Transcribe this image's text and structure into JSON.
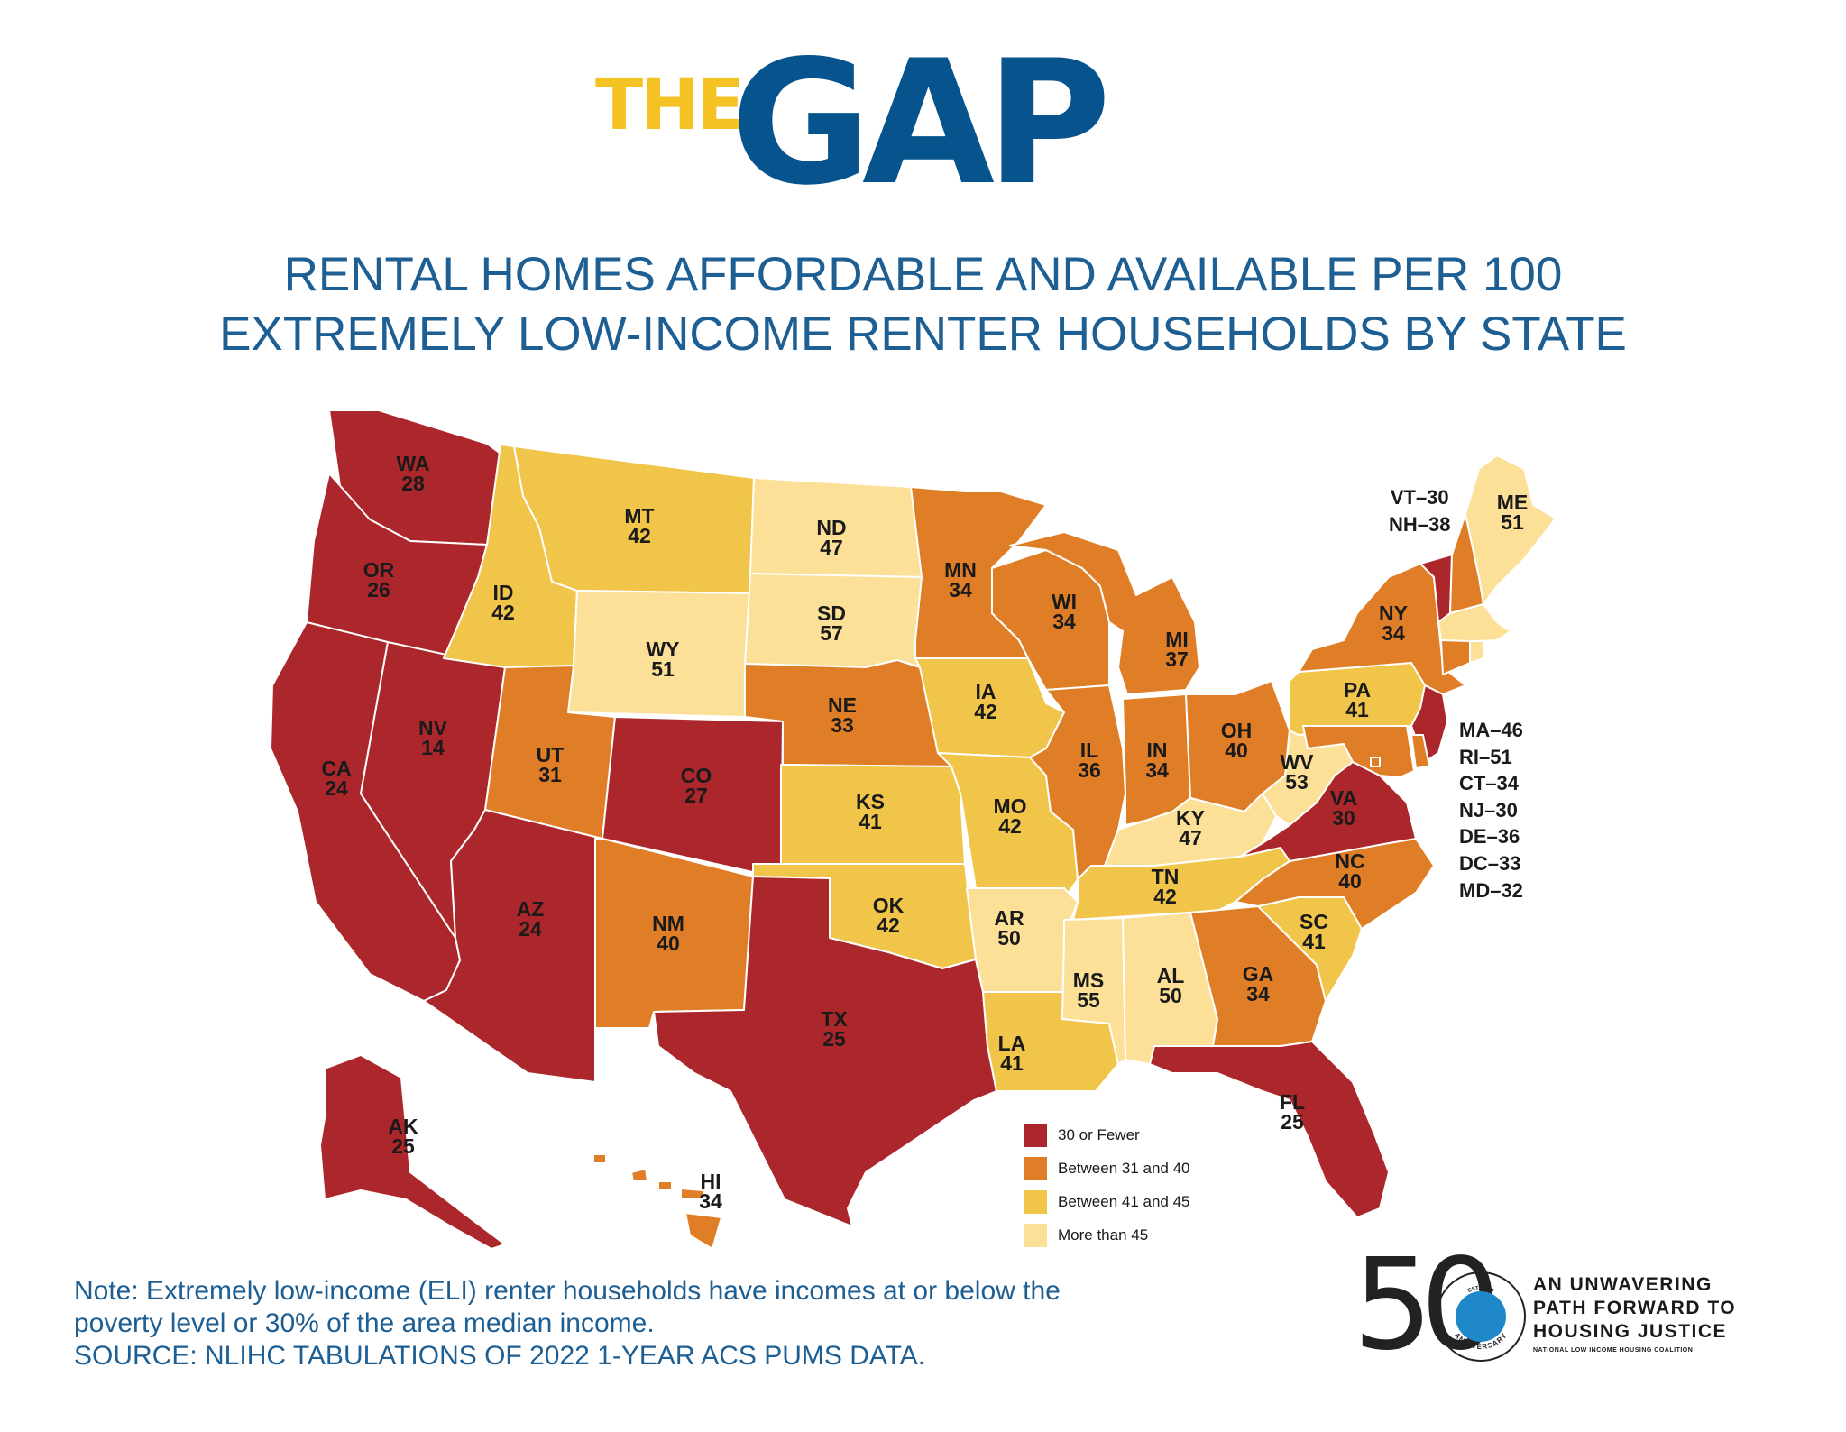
{
  "header": {
    "logo_the": "THE",
    "logo_gap": "GAP"
  },
  "title": {
    "line1": "RENTAL HOMES AFFORDABLE AND AVAILABLE PER 100",
    "line2": "EXTREMELY LOW-INCOME RENTER HOUSEHOLDS BY STATE"
  },
  "colors": {
    "band1": "#ac272c",
    "band2": "#e07e27",
    "band3": "#f1c54a",
    "band4": "#fde097",
    "title_blue": "#1d5e93",
    "logo_blue": "#06538e",
    "logo_yellow": "#f5c224"
  },
  "states": {
    "WA": {
      "label": "WA",
      "value": "28",
      "band": 1
    },
    "OR": {
      "label": "OR",
      "value": "26",
      "band": 1
    },
    "CA": {
      "label": "CA",
      "value": "24",
      "band": 1
    },
    "NV": {
      "label": "NV",
      "value": "14",
      "band": 1
    },
    "ID": {
      "label": "ID",
      "value": "42",
      "band": 3
    },
    "MT": {
      "label": "MT",
      "value": "42",
      "band": 3
    },
    "WY": {
      "label": "WY",
      "value": "51",
      "band": 4
    },
    "UT": {
      "label": "UT",
      "value": "31",
      "band": 2
    },
    "AZ": {
      "label": "AZ",
      "value": "24",
      "band": 1
    },
    "CO": {
      "label": "CO",
      "value": "27",
      "band": 1
    },
    "NM": {
      "label": "NM",
      "value": "40",
      "band": 2
    },
    "ND": {
      "label": "ND",
      "value": "47",
      "band": 4
    },
    "SD": {
      "label": "SD",
      "value": "57",
      "band": 4
    },
    "NE": {
      "label": "NE",
      "value": "33",
      "band": 2
    },
    "KS": {
      "label": "KS",
      "value": "41",
      "band": 3
    },
    "OK": {
      "label": "OK",
      "value": "42",
      "band": 3
    },
    "TX": {
      "label": "TX",
      "value": "25",
      "band": 1
    },
    "MN": {
      "label": "MN",
      "value": "34",
      "band": 2
    },
    "IA": {
      "label": "IA",
      "value": "42",
      "band": 3
    },
    "MO": {
      "label": "MO",
      "value": "42",
      "band": 3
    },
    "AR": {
      "label": "AR",
      "value": "50",
      "band": 4
    },
    "LA": {
      "label": "LA",
      "value": "41",
      "band": 3
    },
    "WI": {
      "label": "WI",
      "value": "34",
      "band": 2
    },
    "IL": {
      "label": "IL",
      "value": "36",
      "band": 2
    },
    "MI": {
      "label": "MI",
      "value": "37",
      "band": 2
    },
    "IN": {
      "label": "IN",
      "value": "34",
      "band": 2
    },
    "OH": {
      "label": "OH",
      "value": "40",
      "band": 2
    },
    "KY": {
      "label": "KY",
      "value": "47",
      "band": 4
    },
    "TN": {
      "label": "TN",
      "value": "42",
      "band": 3
    },
    "MS": {
      "label": "MS",
      "value": "55",
      "band": 4
    },
    "AL": {
      "label": "AL",
      "value": "50",
      "band": 4
    },
    "GA": {
      "label": "GA",
      "value": "34",
      "band": 2
    },
    "FL": {
      "label": "FL",
      "value": "25",
      "band": 1
    },
    "SC": {
      "label": "SC",
      "value": "41",
      "band": 3
    },
    "NC": {
      "label": "NC",
      "value": "40",
      "band": 2
    },
    "VA": {
      "label": "VA",
      "value": "30",
      "band": 1
    },
    "WV": {
      "label": "WV",
      "value": "53",
      "band": 4
    },
    "PA": {
      "label": "PA",
      "value": "41",
      "band": 3
    },
    "NY": {
      "label": "NY",
      "value": "34",
      "band": 2
    },
    "ME": {
      "label": "ME",
      "value": "51",
      "band": 4
    },
    "AK": {
      "label": "AK",
      "value": "25",
      "band": 1
    },
    "HI": {
      "label": "HI",
      "value": "34",
      "band": 2
    },
    "VT": {
      "value": "30",
      "band": 1
    },
    "NH": {
      "value": "38",
      "band": 2
    },
    "MA": {
      "value": "46",
      "band": 4
    },
    "RI": {
      "value": "51",
      "band": 4
    },
    "CT": {
      "value": "34",
      "band": 2
    },
    "NJ": {
      "value": "30",
      "band": 1
    },
    "DE": {
      "value": "36",
      "band": 2
    },
    "DC": {
      "value": "33",
      "band": 2
    },
    "MD": {
      "value": "32",
      "band": 2
    }
  },
  "northeast_list": [
    "VT–30",
    "NH–38"
  ],
  "side_list": [
    "MA–46",
    "RI–51",
    "CT–34",
    "NJ–30",
    "DE–36",
    "DC–33",
    "MD–32"
  ],
  "legend": [
    {
      "label": "30 or Fewer",
      "color": "#ac272c"
    },
    {
      "label": "Between 31 and 40",
      "color": "#e07e27"
    },
    {
      "label": "Between 41 and 45",
      "color": "#f1c54a"
    },
    {
      "label": "More than 45",
      "color": "#fde097"
    }
  ],
  "note": {
    "line1": "Note: Extremely low-income (ELI) renter households have incomes at or below the",
    "line2": "poverty level or 30% of the area median income.",
    "source": "SOURCE: NLIHC TABULATIONS OF 2022 1-YEAR ACS PUMS DATA."
  },
  "brand": {
    "fifty": "50",
    "seal_text": "ANNIVERSARY",
    "seal_top": "EST. 1974",
    "tagline1": "AN UNWAVERING",
    "tagline2": "PATH FORWARD TO",
    "tagline3": "HOUSING JUSTICE",
    "org": "NATIONAL LOW INCOME HOUSING COALITION"
  }
}
